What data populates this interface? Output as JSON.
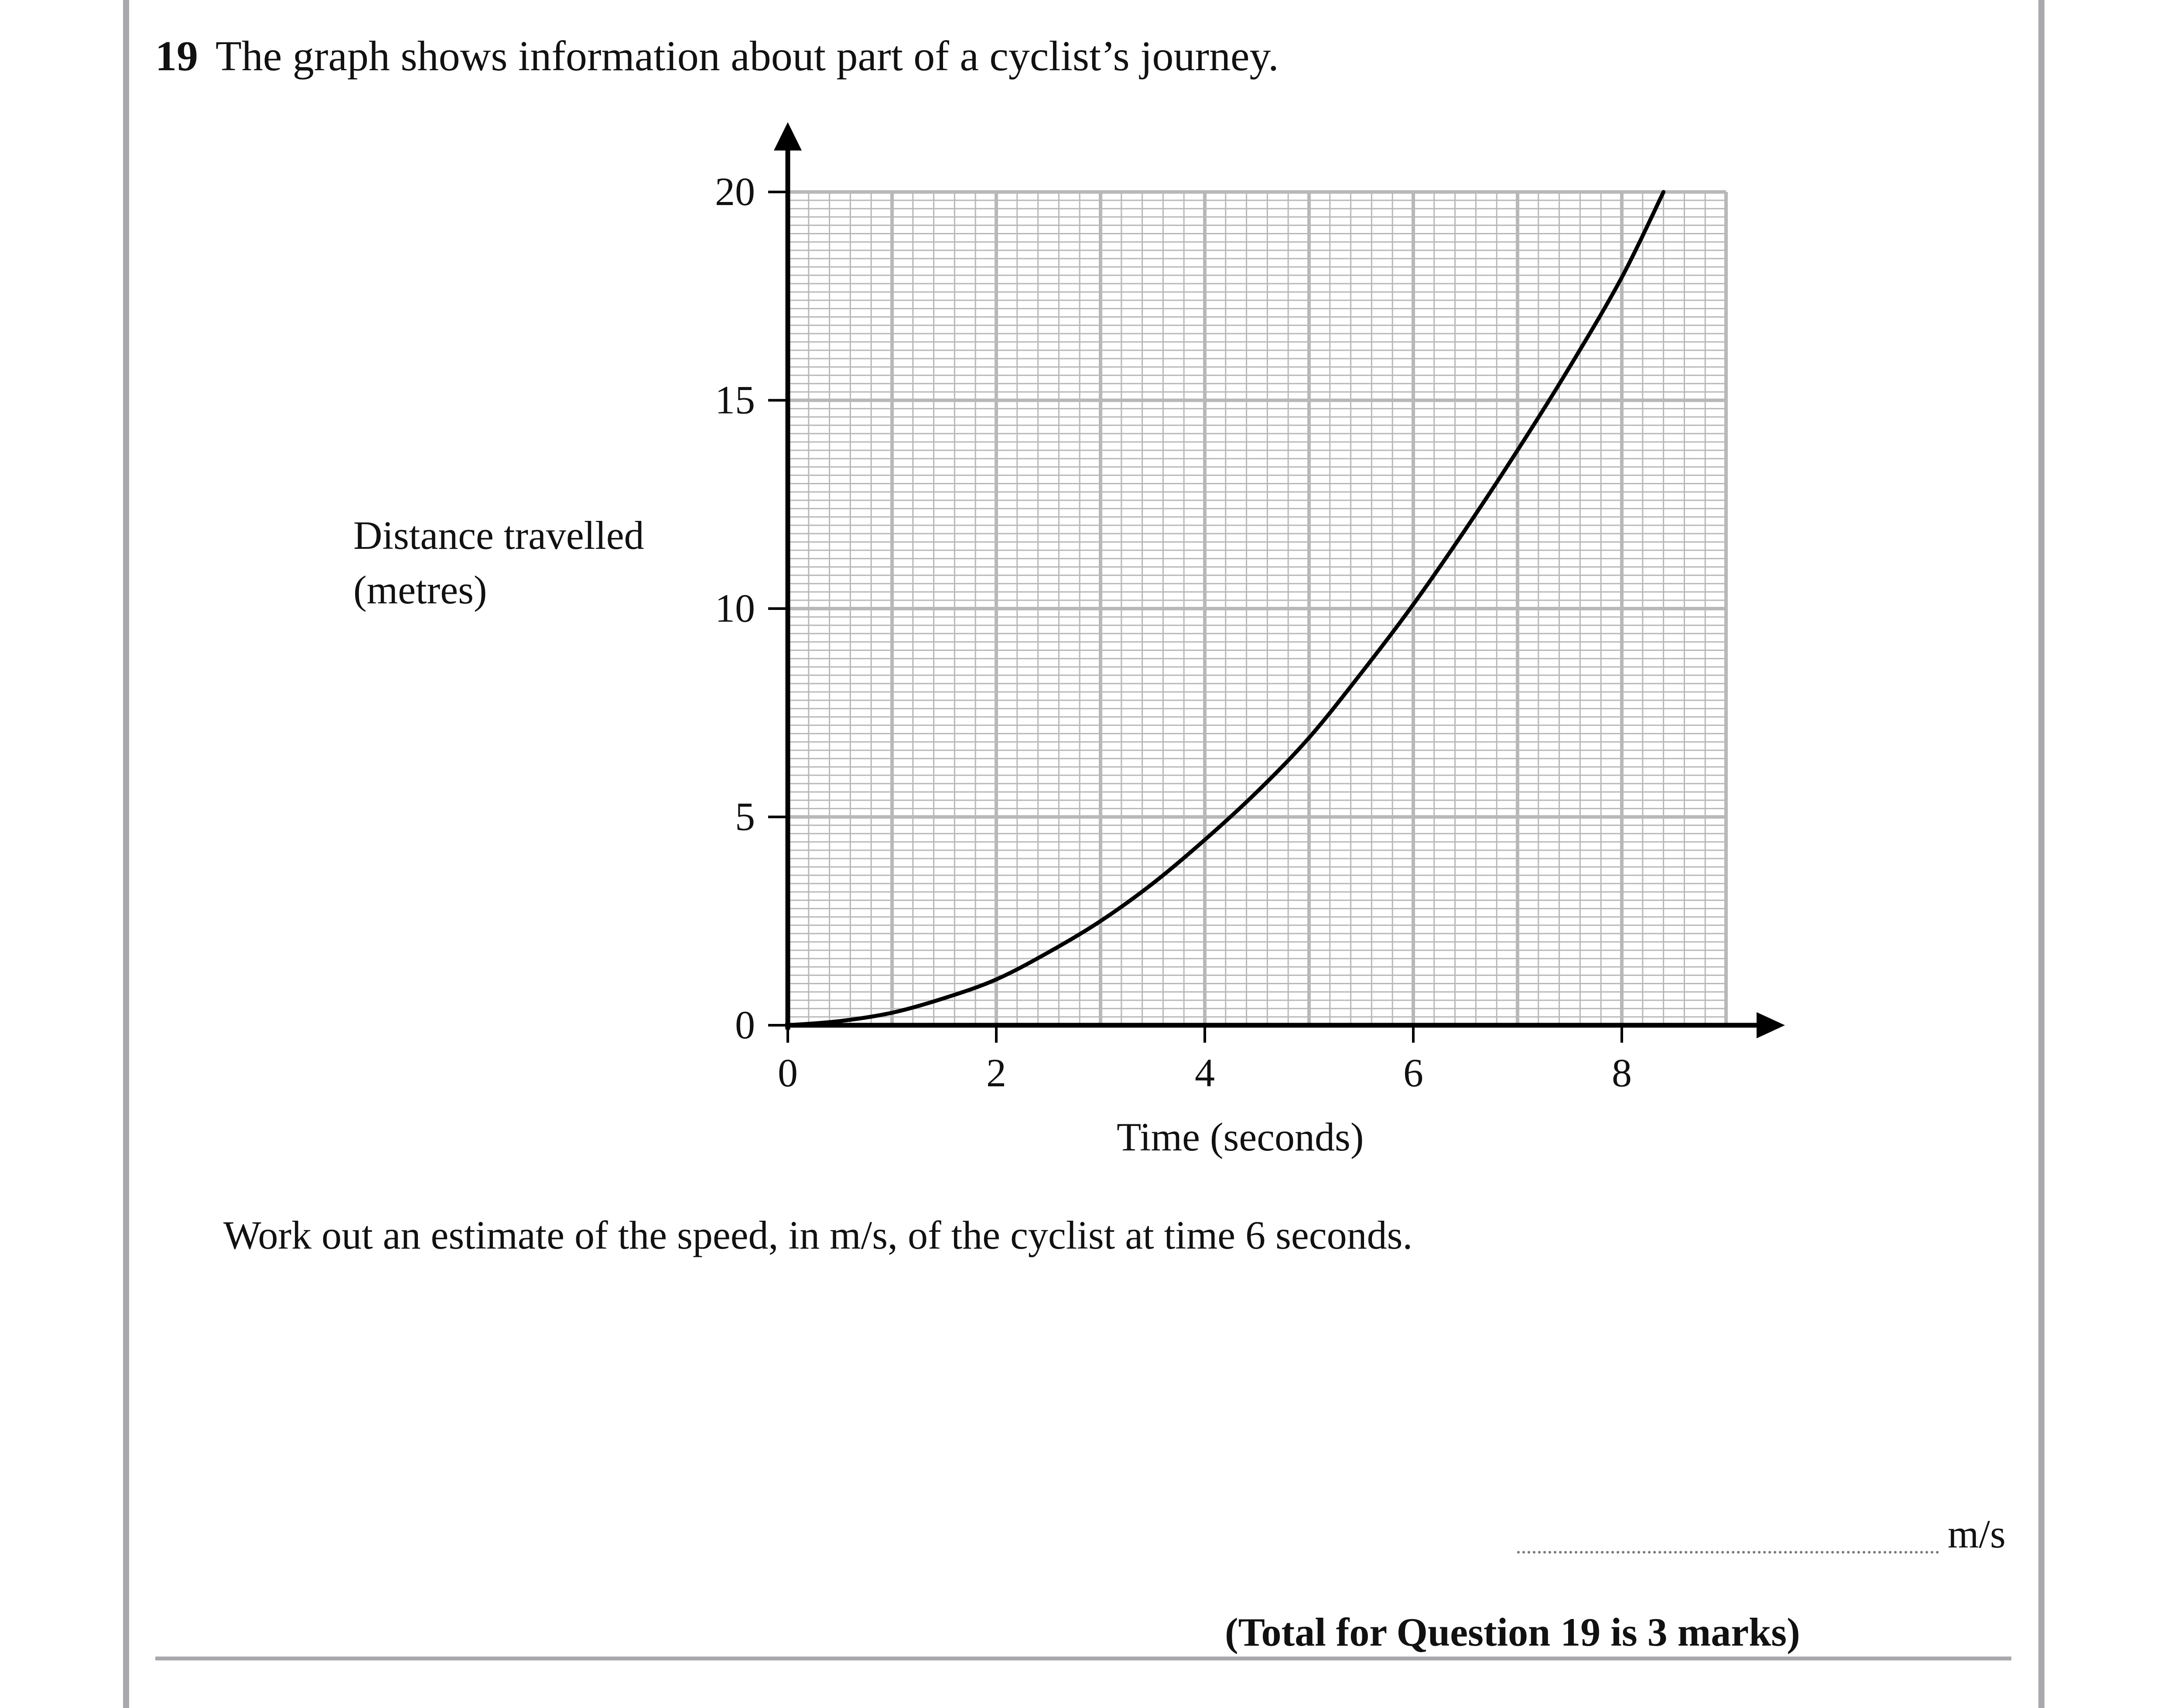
{
  "question": {
    "number": "19",
    "text": "The graph shows information about part of a cyclist’s journey.",
    "task": "Work out an estimate of the speed, in m/s, of the cyclist at time 6 seconds.",
    "answer_unit": "m/s",
    "total": "(Total for Question 19 is 3 marks)"
  },
  "chart_data": {
    "type": "line",
    "xlabel": "Time (seconds)",
    "ylabel_line1": "Distance travelled",
    "ylabel_line2": "(metres)",
    "xlim": [
      0,
      9
    ],
    "ylim": [
      0,
      20
    ],
    "x_ticks": [
      0,
      2,
      4,
      6,
      8
    ],
    "y_ticks": [
      0,
      5,
      10,
      15,
      20
    ],
    "x_tick_labels": [
      "0",
      "2",
      "4",
      "6",
      "8"
    ],
    "y_tick_labels": [
      "0",
      "5",
      "10",
      "15",
      "20"
    ],
    "grid": true,
    "grid_minor_step": {
      "x": 0.2,
      "y": 0.2
    },
    "grid_major_step": {
      "x": 1,
      "y": 2.5
    },
    "colors": {
      "grid": "#b8b8b8",
      "curve": "#000000",
      "axes": "#000000"
    },
    "series": [
      {
        "x": [
          0,
          0.5,
          1,
          1.5,
          2,
          2.5,
          3,
          3.5,
          4,
          4.5,
          5,
          5.5,
          6,
          6.5,
          7,
          7.5,
          8,
          8.4
        ],
        "y": [
          0,
          0.1,
          0.3,
          0.65,
          1.1,
          1.75,
          2.5,
          3.4,
          4.45,
          5.6,
          6.9,
          8.45,
          10.1,
          11.9,
          13.8,
          15.8,
          17.95,
          20
        ]
      }
    ]
  }
}
